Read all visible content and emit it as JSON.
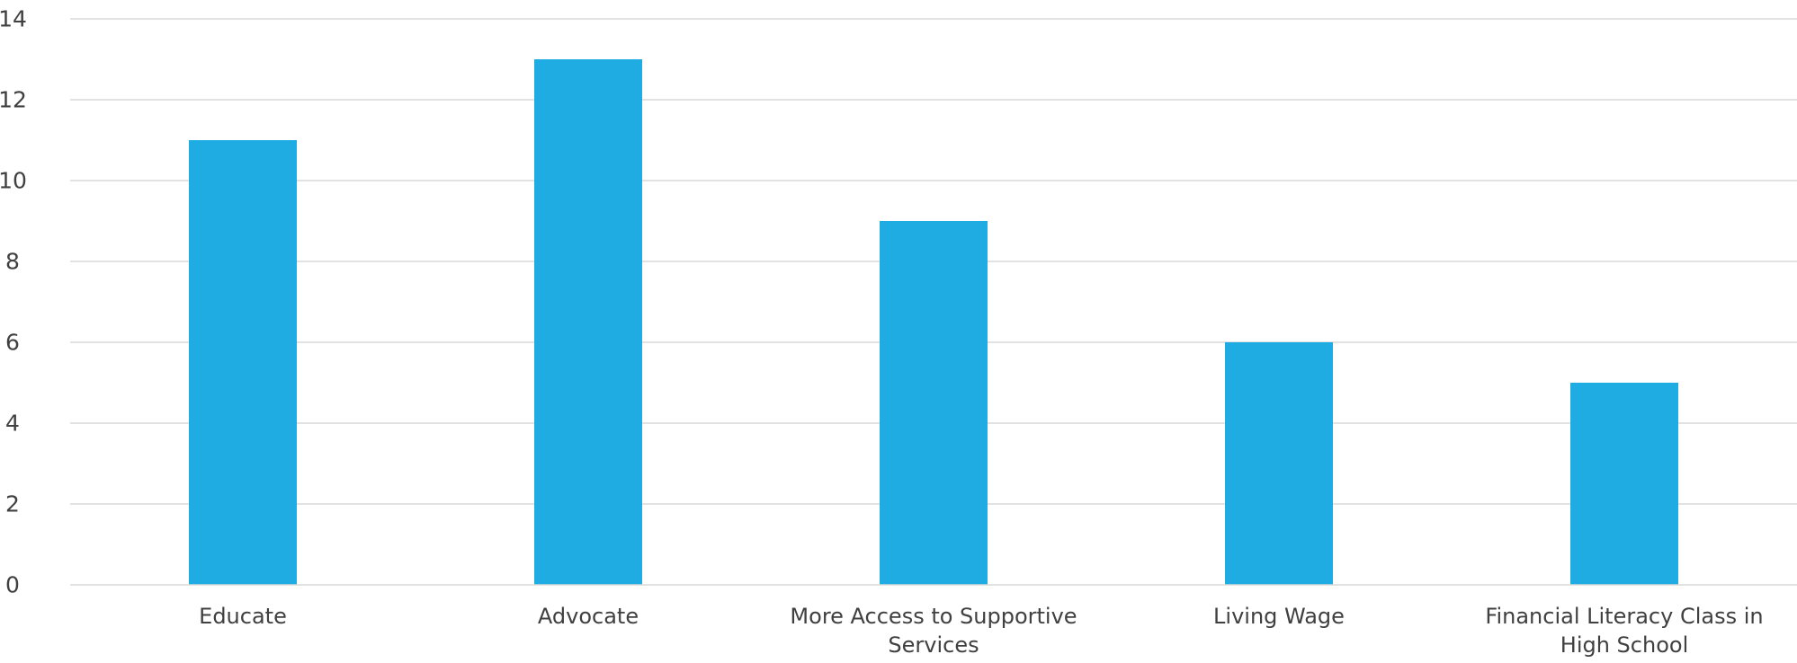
{
  "chart_data": {
    "type": "bar",
    "categories": [
      "Educate",
      "Advocate",
      "More Access to Supportive Services",
      "Living Wage",
      "Financial Literacy Class in High School"
    ],
    "category_label_lines": [
      [
        "Educate"
      ],
      [
        "Advocate"
      ],
      [
        "More Access to Supportive",
        "Services"
      ],
      [
        "Living Wage"
      ],
      [
        "Financial Literacy Class in",
        "High School"
      ]
    ],
    "values": [
      11,
      13,
      9,
      6,
      5
    ],
    "y_ticks": [
      "0",
      "2",
      "4",
      "6",
      "8",
      "10",
      "12",
      "14"
    ],
    "title": "",
    "xlabel": "",
    "ylabel": "",
    "ylim": [
      0,
      14
    ],
    "grid": true,
    "legend": "none",
    "colors": {
      "bar": "#1eace2",
      "grid": "#d9d9d9",
      "text": "#404040"
    }
  }
}
